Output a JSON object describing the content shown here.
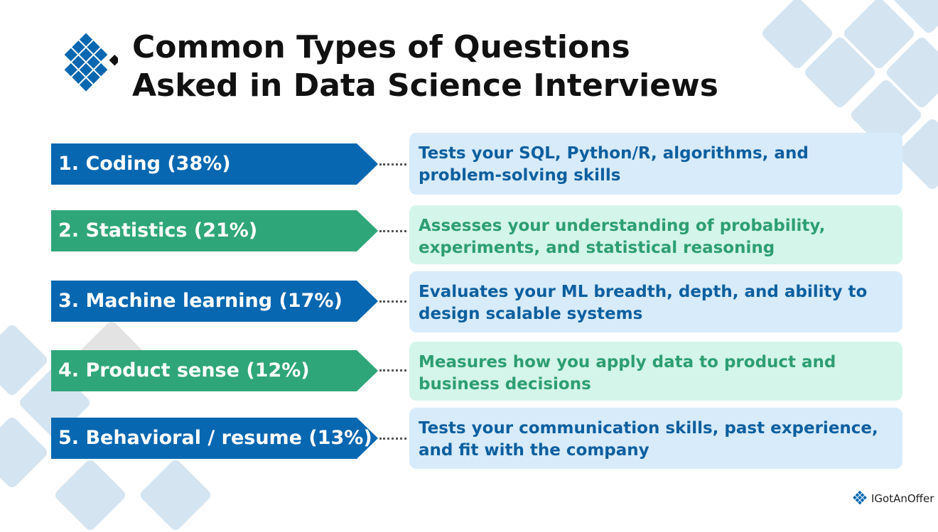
{
  "header": {
    "title": {
      "lines": [
        "Common Types of Questions",
        "Asked in Data Science Interviews"
      ]
    }
  },
  "items": [
    {
      "label": "1. Coding (38%)",
      "description": "Tests your SQL, Python/R, algorithms, and problem-solving skills"
    },
    {
      "label": "2. Statistics (21%)",
      "description": "Assesses your understanding of probability, experiments, and statistical reasoning"
    },
    {
      "label": "3. Machine learning (17%)",
      "description": "Evaluates your ML breadth, depth, and ability to design scalable systems"
    },
    {
      "label": "4. Product sense (12%)",
      "description": "Measures how you apply data to product and business decisions"
    },
    {
      "label": "5. Behavioral / resume (13%)",
      "description": "Tests your communication skills, past experience, and fit with the company"
    }
  ],
  "footer": {
    "brand": "IGotAnOffer"
  }
}
